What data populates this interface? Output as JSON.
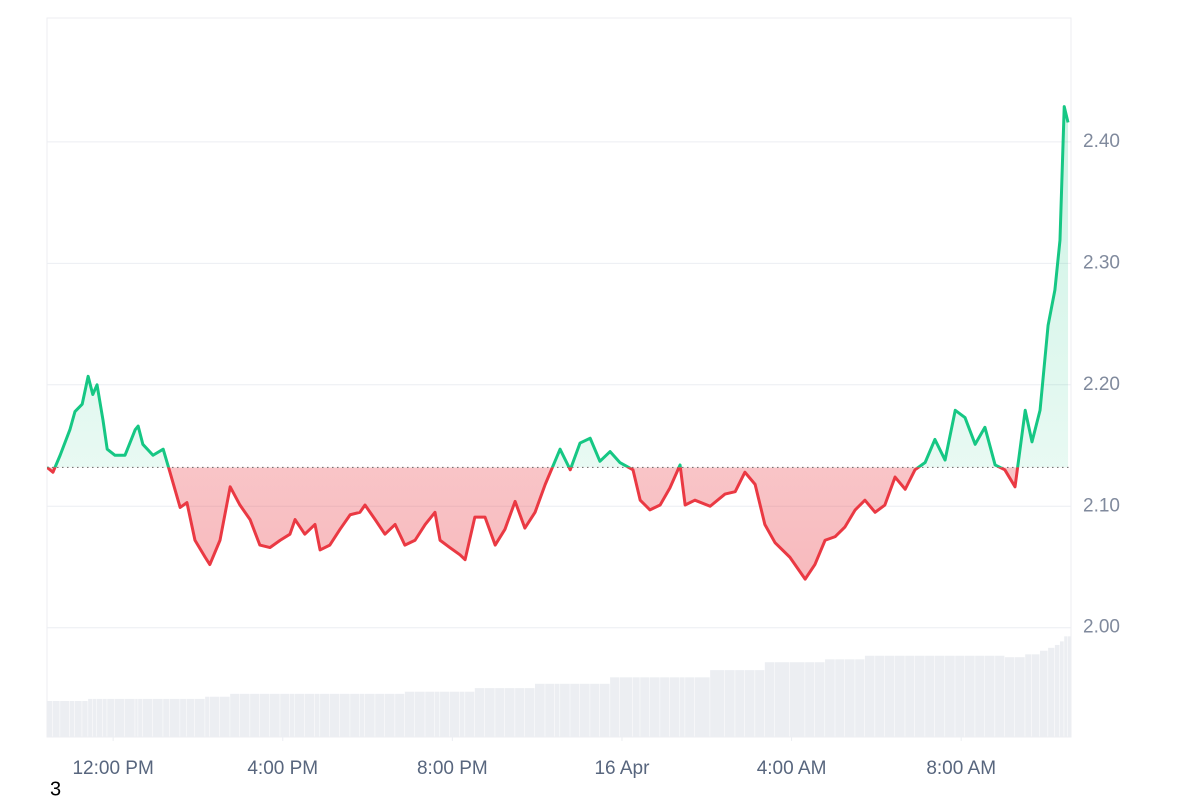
{
  "chart_data": {
    "type": "line",
    "x": [
      10.44,
      10.58,
      10.75,
      10.98,
      11.1,
      11.27,
      11.41,
      11.52,
      11.62,
      11.76,
      11.86,
      12.04,
      12.28,
      12.52,
      12.59,
      12.7,
      12.94,
      13.18,
      13.34,
      13.58,
      13.74,
      13.93,
      14.17,
      14.28,
      14.52,
      14.76,
      14.99,
      15.23,
      15.46,
      15.7,
      15.94,
      16.17,
      16.29,
      16.52,
      16.76,
      16.88,
      17.11,
      17.35,
      17.59,
      17.82,
      17.94,
      18.18,
      18.41,
      18.65,
      18.88,
      19.12,
      19.36,
      19.59,
      19.71,
      19.94,
      20.18,
      20.3,
      20.53,
      20.77,
      21.01,
      21.24,
      21.48,
      21.71,
      21.95,
      22.19,
      22.42,
      22.54,
      22.78,
      23.01,
      23.25,
      23.48,
      23.72,
      23.95,
      24.26,
      24.43,
      24.66,
      24.9,
      25.13,
      25.37,
      25.49,
      25.72,
      26.08,
      26.43,
      26.67,
      26.9,
      27.14,
      27.37,
      27.61,
      27.96,
      28.32,
      28.55,
      28.79,
      29.03,
      29.26,
      29.5,
      29.73,
      29.97,
      30.2,
      30.44,
      30.68,
      30.91,
      31.15,
      31.38,
      31.62,
      31.86,
      32.09,
      32.33,
      32.56,
      32.8,
      33.03,
      33.27,
      33.51,
      33.67,
      33.86,
      34.05,
      34.21,
      34.33,
      34.43,
      34.52
    ],
    "values": [
      2.132,
      2.128,
      2.142,
      2.163,
      2.178,
      2.184,
      2.207,
      2.192,
      2.2,
      2.171,
      2.147,
      2.142,
      2.142,
      2.163,
      2.166,
      2.151,
      2.142,
      2.147,
      2.128,
      2.099,
      2.103,
      2.072,
      2.058,
      2.052,
      2.072,
      2.116,
      2.101,
      2.089,
      2.068,
      2.066,
      2.072,
      2.077,
      2.089,
      2.077,
      2.085,
      2.064,
      2.068,
      2.081,
      2.093,
      2.095,
      2.101,
      2.089,
      2.077,
      2.085,
      2.068,
      2.072,
      2.085,
      2.095,
      2.072,
      2.066,
      2.06,
      2.056,
      2.091,
      2.091,
      2.068,
      2.081,
      2.104,
      2.082,
      2.095,
      2.118,
      2.137,
      2.147,
      2.13,
      2.152,
      2.156,
      2.137,
      2.145,
      2.136,
      2.13,
      2.105,
      2.097,
      2.101,
      2.115,
      2.134,
      2.101,
      2.105,
      2.1,
      2.11,
      2.112,
      2.128,
      2.118,
      2.085,
      2.07,
      2.058,
      2.04,
      2.052,
      2.072,
      2.075,
      2.083,
      2.097,
      2.105,
      2.095,
      2.101,
      2.124,
      2.114,
      2.13,
      2.136,
      2.155,
      2.138,
      2.179,
      2.173,
      2.151,
      2.165,
      2.134,
      2.13,
      2.116,
      2.179,
      2.153,
      2.179,
      2.249,
      2.278,
      2.319,
      2.429,
      2.416
    ],
    "volume": [
      5.0,
      5.0,
      5.0,
      5.0,
      5.0,
      5.0,
      5.3,
      5.3,
      5.3,
      5.3,
      5.3,
      5.3,
      5.3,
      5.3,
      5.3,
      5.3,
      5.3,
      5.3,
      5.3,
      5.3,
      5.3,
      5.3,
      5.6,
      5.6,
      5.6,
      6.0,
      6.0,
      6.0,
      6.0,
      6.0,
      6.0,
      6.0,
      6.0,
      6.0,
      6.0,
      6.0,
      6.0,
      6.0,
      6.0,
      6.0,
      6.0,
      6.0,
      6.0,
      6.0,
      6.3,
      6.3,
      6.3,
      6.3,
      6.3,
      6.3,
      6.3,
      6.3,
      6.8,
      6.8,
      6.8,
      6.8,
      6.8,
      6.8,
      7.4,
      7.4,
      7.4,
      7.4,
      7.4,
      7.4,
      7.4,
      7.4,
      8.3,
      8.3,
      8.3,
      8.3,
      8.3,
      8.3,
      8.3,
      8.3,
      8.3,
      8.3,
      9.3,
      9.3,
      9.3,
      9.3,
      9.3,
      10.4,
      10.4,
      10.4,
      10.4,
      10.4,
      10.8,
      10.8,
      10.8,
      10.8,
      11.3,
      11.3,
      11.3,
      11.3,
      11.3,
      11.3,
      11.3,
      11.3,
      11.3,
      11.3,
      11.3,
      11.3,
      11.3,
      11.3,
      11.1,
      11.1,
      11.5,
      11.5,
      12.0,
      12.4,
      12.8,
      13.3,
      14.0,
      14.0
    ],
    "up_color": "#16c784",
    "down_color": "#ea3943",
    "volume_color": "#eceef2",
    "xlim": [
      10.44,
      34.59
    ],
    "xticks": [
      {
        "value": 12,
        "label": "12:00 PM"
      },
      {
        "value": 16,
        "label": "4:00 PM"
      },
      {
        "value": 20,
        "label": "8:00 PM"
      },
      {
        "value": 24,
        "label": "16 Apr"
      },
      {
        "value": 28,
        "label": "4:00 AM"
      },
      {
        "value": 32,
        "label": "8:00 AM"
      }
    ],
    "ylim": [
      1.91,
      2.502
    ],
    "yticks": [
      {
        "value": 2.0,
        "label": "2.00"
      },
      {
        "value": 2.1,
        "label": "2.10"
      },
      {
        "value": 2.2,
        "label": "2.20"
      },
      {
        "value": 2.3,
        "label": "2.30"
      },
      {
        "value": 2.4,
        "label": "2.40"
      }
    ],
    "y2lim": [
      0,
      100
    ],
    "grid": true,
    "annotation": "3"
  }
}
